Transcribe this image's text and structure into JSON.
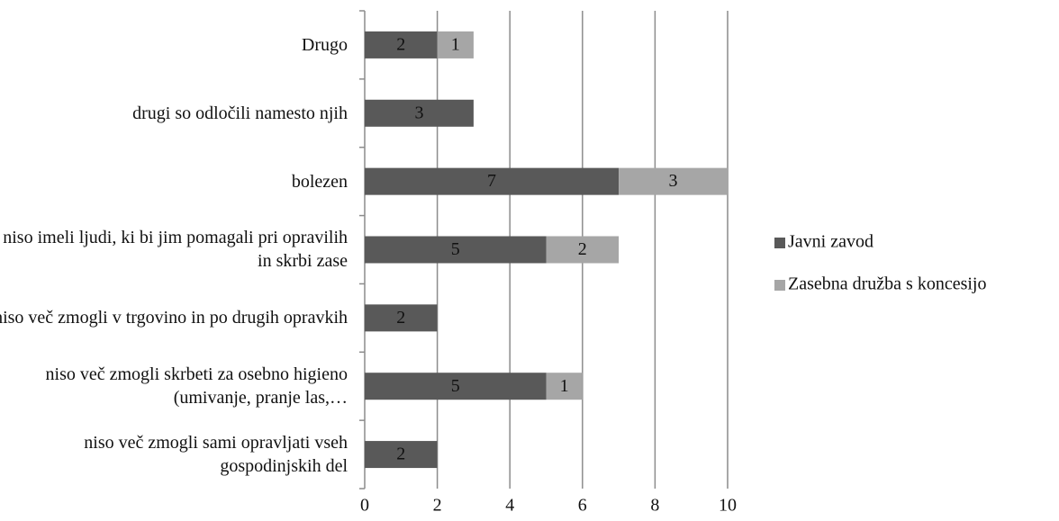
{
  "chart_data": {
    "type": "stacked-bar-horizontal",
    "categories": [
      "Drugo",
      "drugi so odločili namesto njih",
      "bolezen",
      "niso imeli ljudi, ki bi jim pomagali pri opravilih in skrbi zase",
      "niso več zmogli v trgovino in po drugih opravkih",
      "niso več zmogli skrbeti za osebno higieno (umivanje, pranje las,…",
      "niso več zmogli sami opravljati vseh gospodinjskih del"
    ],
    "series": [
      {
        "name": "Javni zavod",
        "color": "#595959",
        "values": [
          2,
          3,
          7,
          5,
          2,
          5,
          2
        ]
      },
      {
        "name": "Zasebna družba s koncesijo",
        "color": "#a6a6a6",
        "values": [
          1,
          null,
          3,
          2,
          null,
          1,
          null
        ]
      }
    ],
    "xlim": [
      0,
      10
    ],
    "xticks": [
      0,
      2,
      4,
      6,
      8,
      10
    ],
    "grid": true,
    "legend": "right"
  }
}
